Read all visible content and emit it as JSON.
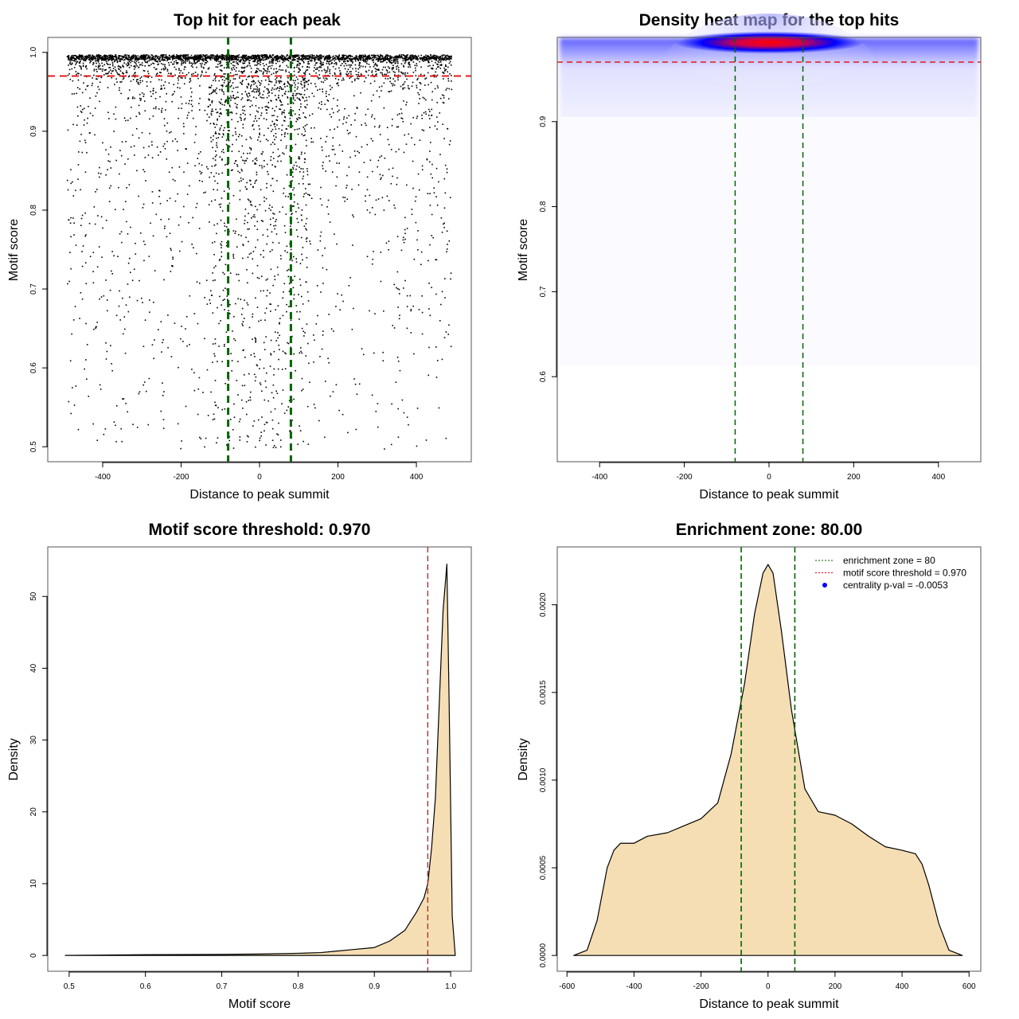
{
  "chart_data": [
    {
      "type": "scatter",
      "title": "Top hit for each peak",
      "xlabel": "Distance to peak summit",
      "ylabel": "Motif score",
      "xlim": [
        -540,
        540
      ],
      "ylim": [
        0.481,
        1.019
      ],
      "xticks": [
        -400,
        -200,
        0,
        200,
        400
      ],
      "yticks": [
        0.5,
        0.6,
        0.7,
        0.8,
        0.9,
        1.0
      ],
      "ytick_labels": [
        "0.5",
        "0.6",
        "0.7",
        "0.8",
        "0.9",
        "1.0"
      ],
      "threshold": 0.97,
      "enrichment_zone": [
        -80,
        80
      ],
      "points_summary": {
        "n": 5000,
        "x_range": [
          -490,
          490
        ],
        "y_range": [
          0.5,
          0.997
        ],
        "seed": 7
      },
      "colors": {
        "points": "#000000",
        "threshold": "#e31a1c",
        "zone": "#006400"
      }
    },
    {
      "type": "heatmap",
      "title": "Density heat map for the top hits",
      "xlabel": "Distance to peak summit",
      "ylabel": "Motif score",
      "xlim": [
        -500,
        500
      ],
      "ylim": [
        0.5,
        0.999
      ],
      "xticks": [
        -400,
        -200,
        0,
        200,
        400
      ],
      "yticks": [
        0.6,
        0.7,
        0.8,
        0.9
      ],
      "ytick_labels": [
        "0.6",
        "0.7",
        "0.8",
        "0.9"
      ],
      "threshold": 0.97,
      "enrichment_zone": [
        -80,
        80
      ],
      "hotspot": {
        "x": 0,
        "y": 0.993
      },
      "colors": {
        "low": "#ffffff",
        "mid": "#0000ff",
        "high": "#ff0000",
        "threshold": "#e31a1c",
        "zone": "#006400"
      }
    },
    {
      "type": "area",
      "title": "Motif score threshold: 0.970",
      "xlabel": "Motif score",
      "ylabel": "Density",
      "xlim": [
        0.472,
        1.027
      ],
      "ylim": [
        -2.2,
        56.9
      ],
      "xticks": [
        0.5,
        0.6,
        0.7,
        0.8,
        0.9,
        1.0
      ],
      "xtick_labels": [
        "0.5",
        "0.6",
        "0.7",
        "0.8",
        "0.9",
        "1.0"
      ],
      "yticks": [
        0,
        10,
        20,
        30,
        40,
        50
      ],
      "ytick_labels": [
        "0",
        "10",
        "20",
        "30",
        "40",
        "50"
      ],
      "x": [
        0.495,
        0.6,
        0.7,
        0.75,
        0.8,
        0.83,
        0.85,
        0.87,
        0.9,
        0.92,
        0.94,
        0.955,
        0.965,
        0.97,
        0.975,
        0.98,
        0.985,
        0.99,
        0.995,
        0.998,
        1.002,
        1.006
      ],
      "y": [
        0,
        0.1,
        0.15,
        0.2,
        0.3,
        0.4,
        0.6,
        0.8,
        1.1,
        2,
        3.5,
        6,
        8,
        10,
        15,
        22,
        35,
        48,
        54.5,
        35,
        5.5,
        0
      ],
      "threshold": 0.97,
      "colors": {
        "fill": "#f5deb3",
        "line": "#000000",
        "threshold": "#a52a2a"
      }
    },
    {
      "type": "area",
      "title": "Enrichment zone: 80.00",
      "xlabel": "Distance to peak summit",
      "ylabel": "Density",
      "xlim": [
        -629,
        635
      ],
      "ylim": [
        -9e-05,
        0.00233
      ],
      "xticks": [
        -600,
        -400,
        -200,
        0,
        200,
        400,
        600
      ],
      "xtick_labels": [
        "-600",
        "-400",
        "-200",
        "0",
        "200",
        "400",
        "600"
      ],
      "yticks": [
        0,
        0.0005,
        0.001,
        0.0015,
        0.002
      ],
      "ytick_labels": [
        "0.0000",
        "0.0005",
        "0.0010",
        "0.0015",
        "0.0020"
      ],
      "x": [
        -580,
        -540,
        -510,
        -480,
        -460,
        -440,
        -400,
        -360,
        -300,
        -250,
        -200,
        -150,
        -110,
        -70,
        -40,
        -15,
        0,
        15,
        40,
        70,
        110,
        150,
        200,
        250,
        300,
        350,
        400,
        440,
        460,
        480,
        510,
        540,
        580
      ],
      "y": [
        0,
        3e-05,
        0.0002,
        0.0005,
        0.0006,
        0.00064,
        0.00064,
        0.00068,
        0.0007,
        0.00074,
        0.00078,
        0.00087,
        0.00115,
        0.00155,
        0.00195,
        0.00218,
        0.00223,
        0.00218,
        0.00185,
        0.0014,
        0.00095,
        0.00082,
        0.0008,
        0.00075,
        0.00068,
        0.00062,
        0.0006,
        0.00058,
        0.00052,
        0.0004,
        0.00018,
        3e-05,
        0
      ],
      "enrichment_zone": [
        -80,
        80
      ],
      "legend": [
        {
          "label": "enrichment zone = 80",
          "style": "dotted",
          "color": "#006400"
        },
        {
          "label": "motif score threshold = 0.970",
          "style": "dotted",
          "color": "#ff0000"
        },
        {
          "label": "centrality p-val = -0.0053",
          "style": "point",
          "color": "#0000ff"
        }
      ],
      "legend_position": "top-right",
      "colors": {
        "fill": "#f5deb3",
        "line": "#000000",
        "zone": "#006400"
      }
    }
  ]
}
